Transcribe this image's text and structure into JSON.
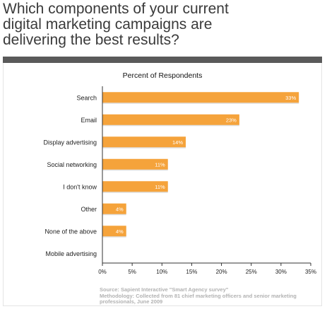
{
  "headline": {
    "line1": "Which components of your current",
    "line2": "digital marketing campaigns are",
    "line3": "delivering the best results?"
  },
  "source": {
    "line1": "Source: Sapient Interactive \"Smart Agency survey\"",
    "line2": "Methodology:  Collected from 81 chief marketing officers and senior marketing",
    "line3": "professionals, June 2009"
  },
  "colors": {
    "bar": "#F5A33B",
    "bar_label": "#ffffff",
    "text": "#222222",
    "axis": "#333333"
  },
  "chart_data": {
    "type": "bar",
    "orientation": "horizontal",
    "title": "Percent of Respondents",
    "categories": [
      "Search",
      "Email",
      "Display advertising",
      "Social networking",
      "I don't know",
      "Other",
      "None of the above",
      "Mobile advertising"
    ],
    "values": [
      33,
      23,
      14,
      11,
      11,
      4,
      4,
      0
    ],
    "value_labels": [
      "33%",
      "23%",
      "14%",
      "11%",
      "11%",
      "4%",
      "4%",
      ""
    ],
    "xlim": [
      0,
      35
    ],
    "xticks": [
      0,
      5,
      10,
      15,
      20,
      25,
      30,
      35
    ],
    "xtick_labels": [
      "0%",
      "5%",
      "10%",
      "15%",
      "20%",
      "25%",
      "30%",
      "35%"
    ],
    "grid": false,
    "legend": "none"
  }
}
